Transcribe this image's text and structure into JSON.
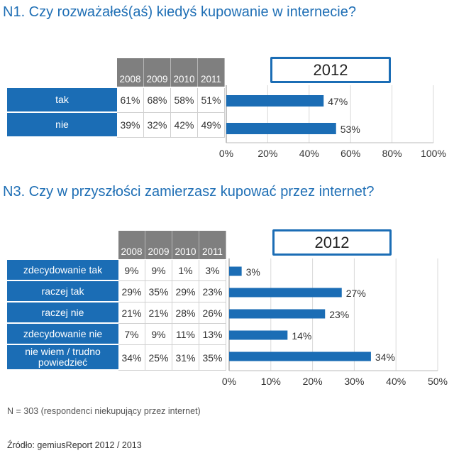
{
  "n1": {
    "title": "N1. Czy rozważałeś(aś) kiedyś kupowanie w internecie?",
    "years": [
      "2008",
      "2009",
      "2010",
      "2011"
    ],
    "highlight_year": "2012",
    "rows": [
      {
        "label": "tak",
        "values": [
          "61%",
          "68%",
          "58%",
          "51%"
        ]
      },
      {
        "label": "nie",
        "values": [
          "39%",
          "32%",
          "42%",
          "49%"
        ]
      }
    ]
  },
  "n3": {
    "title": "N3. Czy w przyszłości zamierzasz kupować przez internet?",
    "years": [
      "2008",
      "2009",
      "2010",
      "2011"
    ],
    "highlight_year": "2012",
    "rows": [
      {
        "label": "zdecydowanie tak",
        "values": [
          "9%",
          "9%",
          "1%",
          "3%"
        ]
      },
      {
        "label": "raczej tak",
        "values": [
          "29%",
          "35%",
          "29%",
          "23%"
        ]
      },
      {
        "label": "raczej nie",
        "values": [
          "21%",
          "21%",
          "28%",
          "26%"
        ]
      },
      {
        "label": "zdecydowanie nie",
        "values": [
          "7%",
          "9%",
          "11%",
          "13%"
        ]
      },
      {
        "label": "nie wiem / trudno powiedzieć",
        "values": [
          "34%",
          "25%",
          "31%",
          "35%"
        ]
      }
    ]
  },
  "footer": {
    "note": "N = 303 (respondenci niekupujący przez internet)",
    "source": "Źródło: gemiusReport 2012 / 2013"
  },
  "colors": {
    "bar": "#1b6db5",
    "title": "#1f6fb5",
    "header_gray": "#7f7f7f"
  },
  "chart_data": [
    {
      "type": "bar",
      "orientation": "horizontal",
      "title": "N1. Czy rozważałeś(aś) kiedyś kupowanie w internecie?",
      "categories": [
        "tak",
        "nie"
      ],
      "series": [
        {
          "name": "2012",
          "values": [
            47,
            53
          ]
        }
      ],
      "data_labels": [
        "47%",
        "53%"
      ],
      "xlim": [
        0,
        100
      ],
      "xticks": [
        0,
        20,
        40,
        60,
        80,
        100
      ],
      "xtick_labels": [
        "0%",
        "20%",
        "40%",
        "60%",
        "80%",
        "100%"
      ],
      "grid": true
    },
    {
      "type": "bar",
      "orientation": "horizontal",
      "title": "N3. Czy w przyszłości zamierzasz kupować przez internet?",
      "categories": [
        "zdecydowanie tak",
        "raczej tak",
        "raczej nie",
        "zdecydowanie nie",
        "nie wiem / trudno powiedzieć"
      ],
      "series": [
        {
          "name": "2012",
          "values": [
            3,
            27,
            23,
            14,
            34
          ]
        }
      ],
      "data_labels": [
        "3%",
        "27%",
        "23%",
        "14%",
        "34%"
      ],
      "xlim": [
        0,
        50
      ],
      "xticks": [
        0,
        10,
        20,
        30,
        40,
        50
      ],
      "xtick_labels": [
        "0%",
        "10%",
        "20%",
        "30%",
        "40%",
        "50%"
      ],
      "grid": true
    }
  ]
}
